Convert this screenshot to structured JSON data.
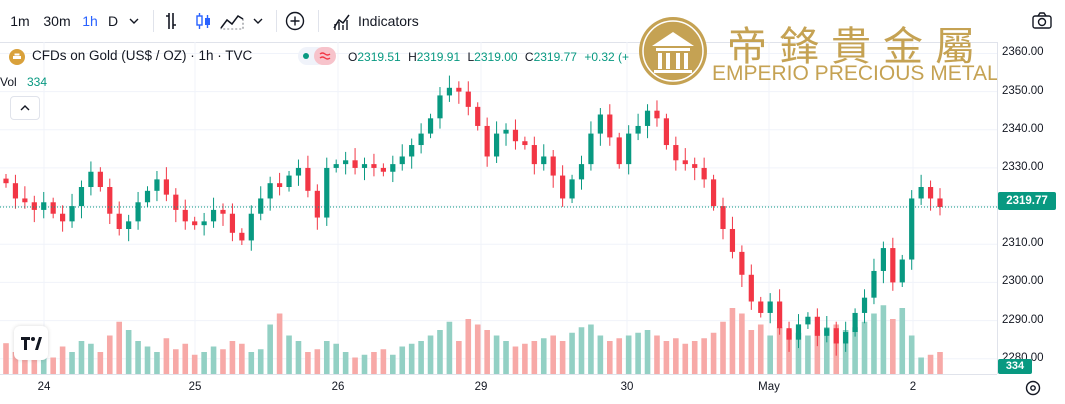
{
  "toolbar": {
    "intervals": [
      "1m",
      "30m",
      "1h",
      "D"
    ],
    "active_interval": "1h",
    "indicators_label": "Indicators"
  },
  "legend": {
    "symbol": "CFDs on Gold (US$ / OZ) · 1h · TVC",
    "open_label": "O",
    "open": "2319.51",
    "high_label": "H",
    "high": "2319.91",
    "low_label": "L",
    "low": "2319.00",
    "close_label": "C",
    "close": "2319.77",
    "change": "+0.32 (+",
    "vol_label": "Vol",
    "vol_value": "334"
  },
  "watermark": {
    "chinese": "帝鋒貴金屬",
    "english": "EMPERIO PRECIOUS METALS"
  },
  "colors": {
    "up": "#089981",
    "down": "#f23645",
    "vol_up": "#93d0c4",
    "vol_down": "#f7a9a7",
    "accent": "#2962ff",
    "gold": "#c5a253"
  },
  "chart_data": {
    "type": "candlestick",
    "y_ticks": [
      "2360.00",
      "2350.00",
      "2340.00",
      "2330.00",
      "2320.00",
      "2310.00",
      "2300.00",
      "2290.00",
      "2280.00"
    ],
    "x_ticks": [
      "24",
      "25",
      "26",
      "29",
      "30",
      "May",
      "2"
    ],
    "last_price": "2319.77",
    "last_volume": "334",
    "ylim": [
      2276,
      2363
    ],
    "close_path": [
      2326,
      2322,
      2321,
      2319,
      2321,
      2318,
      2316,
      2320,
      2325,
      2329,
      2325,
      2318,
      2314,
      2316,
      2321,
      2324,
      2327,
      2323,
      2319,
      2316,
      2315,
      2316,
      2319,
      2318,
      2313,
      2311,
      2318,
      2322,
      2326,
      2325,
      2328,
      2330,
      2324,
      2317,
      2330,
      2331,
      2332,
      2330,
      2331,
      2330,
      2329,
      2331,
      2333,
      2336,
      2339,
      2343,
      2349,
      2351,
      2350,
      2346,
      2341,
      2333,
      2339,
      2340,
      2337,
      2336,
      2331,
      2333,
      2328,
      2322,
      2327,
      2331,
      2339,
      2344,
      2338,
      2331,
      2339,
      2341,
      2345,
      2343,
      2336,
      2332,
      2331,
      2330,
      2327,
      2320,
      2314,
      2308,
      2302,
      2295,
      2292,
      2295,
      2288,
      2285,
      2289,
      2291,
      2286,
      2288,
      2284,
      2287,
      2292,
      2296,
      2303,
      2309,
      2300,
      2306,
      2322,
      2325,
      2322,
      2319.77
    ],
    "volume_path": [
      56,
      40,
      70,
      35,
      45,
      30,
      50,
      40,
      60,
      55,
      40,
      70,
      95,
      80,
      60,
      50,
      40,
      65,
      45,
      55,
      35,
      40,
      50,
      45,
      60,
      55,
      40,
      45,
      90,
      110,
      70,
      60,
      40,
      45,
      60,
      55,
      40,
      30,
      35,
      40,
      45,
      35,
      50,
      55,
      60,
      70,
      80,
      95,
      60,
      100,
      90,
      80,
      70,
      60,
      50,
      55,
      60,
      65,
      70,
      60,
      75,
      85,
      90,
      70,
      60,
      65,
      70,
      75,
      80,
      70,
      60,
      65,
      55,
      60,
      65,
      75,
      95,
      120,
      110,
      80,
      90,
      70,
      85,
      80,
      75,
      70,
      80,
      85,
      90,
      80,
      85,
      95,
      110,
      125,
      100,
      120,
      70,
      30,
      35,
      40
    ]
  }
}
